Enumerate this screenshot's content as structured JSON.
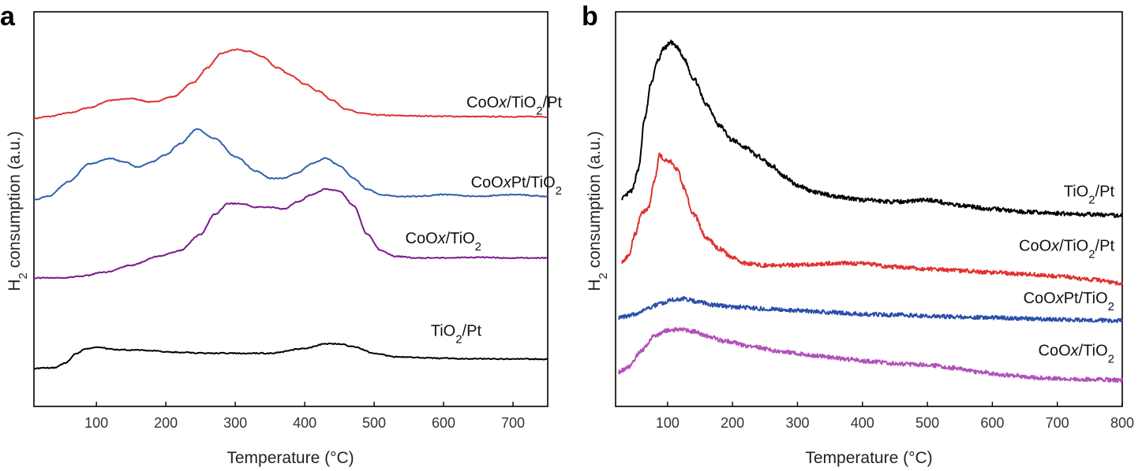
{
  "chart_data": [
    {
      "type": "line",
      "panel": "a",
      "xlabel": "Temperature (°C)",
      "ylabel_main": "H",
      "ylabel_sub": "2",
      "ylabel_rest": " consumption (a.u.)",
      "xlim": [
        10,
        750
      ],
      "ylim": [
        0,
        10
      ],
      "xticks": [
        100,
        200,
        300,
        400,
        500,
        600,
        700
      ],
      "series": [
        {
          "name": "CoOx/TiO2/Pt",
          "color": "#e03030",
          "label": [
            {
              "t": "CoO",
              "s": ""
            },
            {
              "t": "x",
              "s": "i"
            },
            {
              "t": "/TiO",
              "s": ""
            },
            {
              "t": "2",
              "s": "b"
            },
            {
              "t": "/Pt",
              "s": ""
            }
          ],
          "x": [
            10,
            30,
            60,
            90,
            120,
            150,
            180,
            210,
            240,
            260,
            280,
            300,
            320,
            340,
            360,
            380,
            400,
            420,
            440,
            460,
            480,
            500,
            530,
            560,
            600,
            650,
            700,
            750
          ],
          "y": [
            7.6,
            7.65,
            7.75,
            7.9,
            8.1,
            8.15,
            8.05,
            8.2,
            8.6,
            9.0,
            9.4,
            9.5,
            9.45,
            9.3,
            9.0,
            8.8,
            8.55,
            8.35,
            8.1,
            7.85,
            7.75,
            7.7,
            7.68,
            7.67,
            7.66,
            7.65,
            7.65,
            7.65
          ]
        },
        {
          "name": "CoOxPt/TiO2",
          "color": "#3060b0",
          "label": [
            {
              "t": "CoO",
              "s": ""
            },
            {
              "t": "x",
              "s": "i"
            },
            {
              "t": "Pt/TiO",
              "s": ""
            },
            {
              "t": "2",
              "s": "b"
            }
          ],
          "x": [
            10,
            30,
            60,
            90,
            120,
            140,
            160,
            180,
            200,
            220,
            245,
            270,
            300,
            330,
            350,
            370,
            390,
            410,
            430,
            450,
            470,
            490,
            510,
            530,
            560,
            600,
            650,
            700,
            750
          ],
          "y": [
            5.35,
            5.45,
            5.85,
            6.35,
            6.5,
            6.4,
            6.25,
            6.4,
            6.6,
            6.9,
            7.3,
            7.05,
            6.55,
            6.15,
            5.95,
            5.95,
            6.1,
            6.35,
            6.5,
            6.3,
            5.95,
            5.65,
            5.5,
            5.45,
            5.45,
            5.5,
            5.45,
            5.5,
            5.45
          ]
        },
        {
          "name": "CoOx/TiO2",
          "color": "#7a1a8c",
          "label": [
            {
              "t": "CoO",
              "s": ""
            },
            {
              "t": "x",
              "s": "i"
            },
            {
              "t": "/TiO",
              "s": ""
            },
            {
              "t": "2",
              "s": "b"
            }
          ],
          "x": [
            10,
            50,
            80,
            110,
            150,
            190,
            220,
            250,
            270,
            290,
            310,
            330,
            350,
            370,
            390,
            410,
            430,
            450,
            470,
            490,
            510,
            530,
            560,
            600,
            650,
            700,
            750
          ],
          "y": [
            3.2,
            3.2,
            3.25,
            3.35,
            3.55,
            3.8,
            3.95,
            4.4,
            4.95,
            5.25,
            5.25,
            5.15,
            5.15,
            5.1,
            5.3,
            5.5,
            5.65,
            5.6,
            5.2,
            4.4,
            3.95,
            3.8,
            3.75,
            3.75,
            3.77,
            3.75,
            3.75
          ]
        },
        {
          "name": "TiO2/Pt",
          "color": "#000000",
          "label": [
            {
              "t": "TiO",
              "s": ""
            },
            {
              "t": "2",
              "s": "b"
            },
            {
              "t": "/Pt",
              "s": ""
            }
          ],
          "x": [
            10,
            40,
            55,
            70,
            85,
            100,
            130,
            170,
            210,
            260,
            300,
            350,
            400,
            430,
            450,
            470,
            500,
            530,
            560,
            600,
            650,
            700,
            750
          ],
          "y": [
            0.7,
            0.72,
            0.85,
            1.1,
            1.25,
            1.28,
            1.22,
            1.2,
            1.15,
            1.12,
            1.12,
            1.12,
            1.25,
            1.38,
            1.38,
            1.3,
            1.12,
            1.02,
            1.0,
            0.98,
            0.97,
            0.96,
            0.96
          ]
        }
      ],
      "label_anchor_x": [
        712,
        712,
        610,
        610
      ],
      "label_y": [
        7.9,
        5.7,
        4.15,
        1.6
      ]
    },
    {
      "type": "line",
      "panel": "b",
      "xlabel": "Temperature (°C)",
      "ylabel_main": "H",
      "ylabel_sub": "2",
      "ylabel_rest": " consumption (a.u.)",
      "xlim": [
        20,
        800
      ],
      "ylim": [
        0,
        10
      ],
      "xticks": [
        100,
        200,
        300,
        400,
        500,
        600,
        700,
        800
      ],
      "series": [
        {
          "name": "TiO2/Pt",
          "color": "#000000",
          "label": [
            {
              "t": "TiO",
              "s": ""
            },
            {
              "t": "2",
              "s": "b"
            },
            {
              "t": "/Pt",
              "s": ""
            }
          ],
          "x": [
            30,
            45,
            55,
            65,
            75,
            85,
            95,
            105,
            115,
            125,
            140,
            160,
            180,
            200,
            220,
            240,
            260,
            280,
            300,
            330,
            360,
            400,
            450,
            500,
            550,
            600,
            650,
            700,
            750,
            800
          ],
          "y": [
            5.4,
            5.6,
            6.2,
            7.6,
            8.6,
            9.2,
            9.55,
            9.7,
            9.55,
            9.25,
            8.7,
            8.0,
            7.4,
            7.0,
            6.8,
            6.55,
            6.3,
            6.0,
            5.75,
            5.55,
            5.45,
            5.35,
            5.3,
            5.35,
            5.2,
            5.1,
            5.02,
            4.98,
            4.95,
            4.92
          ]
        },
        {
          "name": "CoOx/TiO2/Pt",
          "color": "#e03030",
          "label": [
            {
              "t": "CoO",
              "s": ""
            },
            {
              "t": "x",
              "s": "i"
            },
            {
              "t": "/TiO",
              "s": ""
            },
            {
              "t": "2",
              "s": "b"
            },
            {
              "t": "/Pt",
              "s": ""
            }
          ],
          "x": [
            30,
            40,
            50,
            60,
            70,
            80,
            88,
            95,
            105,
            115,
            125,
            140,
            160,
            180,
            200,
            220,
            250,
            300,
            350,
            400,
            450,
            500,
            550,
            600,
            650,
            700,
            750,
            800
          ],
          "y": [
            3.65,
            3.8,
            4.4,
            5.0,
            5.1,
            5.9,
            6.6,
            6.45,
            6.4,
            6.2,
            5.7,
            4.95,
            4.3,
            4.0,
            3.75,
            3.6,
            3.55,
            3.55,
            3.6,
            3.6,
            3.5,
            3.45,
            3.4,
            3.35,
            3.3,
            3.25,
            3.15,
            3.05
          ]
        },
        {
          "name": "CoOxPt/TiO2",
          "color": "#2a4fa8",
          "label": [
            {
              "t": "CoO",
              "s": ""
            },
            {
              "t": "x",
              "s": "i"
            },
            {
              "t": "Pt/TiO",
              "s": ""
            },
            {
              "t": "2",
              "s": "b"
            }
          ],
          "x": [
            25,
            50,
            70,
            90,
            110,
            125,
            145,
            170,
            200,
            250,
            300,
            350,
            400,
            450,
            500,
            550,
            600,
            650,
            700,
            750,
            800
          ],
          "y": [
            2.1,
            2.2,
            2.35,
            2.5,
            2.6,
            2.62,
            2.55,
            2.45,
            2.4,
            2.35,
            2.3,
            2.25,
            2.2,
            2.18,
            2.15,
            2.12,
            2.1,
            2.08,
            2.05,
            2.03,
            2.02
          ]
        },
        {
          "name": "CoOx/TiO2",
          "color": "#b050b8",
          "label": [
            {
              "t": "CoO",
              "s": ""
            },
            {
              "t": "x",
              "s": "i"
            },
            {
              "t": "/TiO",
              "s": ""
            },
            {
              "t": "2",
              "s": "b"
            }
          ],
          "x": [
            25,
            40,
            60,
            80,
            100,
            120,
            140,
            160,
            190,
            230,
            280,
            330,
            380,
            420,
            460,
            500,
            540,
            580,
            620,
            660,
            700,
            750,
            800
          ],
          "y": [
            0.6,
            0.75,
            1.2,
            1.6,
            1.75,
            1.78,
            1.72,
            1.6,
            1.45,
            1.3,
            1.15,
            1.05,
            0.95,
            0.88,
            0.82,
            0.8,
            0.72,
            0.6,
            0.52,
            0.45,
            0.42,
            0.4,
            0.38
          ]
        }
      ],
      "label_anchor_x": [
        1412,
        1412,
        1412,
        1412
      ],
      "label_y": [
        5.45,
        3.95,
        2.5,
        1.05
      ]
    }
  ]
}
